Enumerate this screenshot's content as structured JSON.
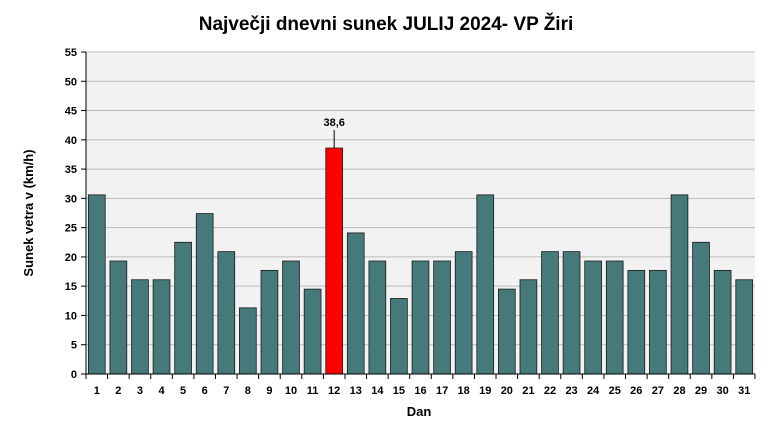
{
  "chart_data": {
    "type": "bar",
    "title": "Največji dnevni sunek JULIJ 2024- VP Žiri",
    "xlabel": "Dan",
    "ylabel": "Sunek vetra v (km/h)",
    "ylim": [
      0,
      55
    ],
    "yticks": [
      0,
      5,
      10,
      15,
      20,
      25,
      30,
      35,
      40,
      45,
      50,
      55
    ],
    "grid": true,
    "legend": "none",
    "categories": [
      "1",
      "2",
      "3",
      "4",
      "5",
      "6",
      "7",
      "8",
      "9",
      "10",
      "11",
      "12",
      "13",
      "14",
      "15",
      "16",
      "17",
      "18",
      "19",
      "20",
      "21",
      "22",
      "23",
      "24",
      "25",
      "26",
      "27",
      "28",
      "29",
      "30",
      "31"
    ],
    "values": [
      30.6,
      19.3,
      16.1,
      16.1,
      22.5,
      27.4,
      20.9,
      11.3,
      17.7,
      19.3,
      14.5,
      38.6,
      24.1,
      19.3,
      12.9,
      19.3,
      19.3,
      20.9,
      30.6,
      14.5,
      16.1,
      20.9,
      20.9,
      19.3,
      19.3,
      17.7,
      17.7,
      30.6,
      22.5,
      17.7,
      16.1
    ],
    "highlight": {
      "index": 11,
      "label": "38,6",
      "color": "#ff0000"
    },
    "colors": {
      "bar": "#467a7a",
      "bar_edge": "#1a1a1a",
      "plot_bg": "#f2f2f2",
      "grid": "#bdbdbd"
    }
  }
}
